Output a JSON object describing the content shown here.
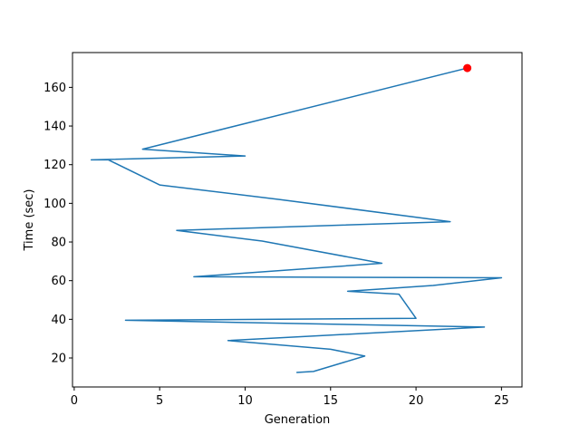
{
  "chart_data": {
    "type": "line",
    "title": "",
    "xlabel": "Generation",
    "ylabel": "Time (sec)",
    "xlim": [
      -0.1,
      26.2
    ],
    "ylim": [
      5,
      178
    ],
    "xticks": [
      0,
      5,
      10,
      15,
      20,
      25
    ],
    "yticks": [
      20,
      40,
      60,
      80,
      100,
      120,
      140,
      160
    ],
    "grid": false,
    "series": [
      {
        "color": "#1f77b4",
        "points": [
          {
            "x": 13,
            "y": 12.5
          },
          {
            "x": 14,
            "y": 13
          },
          {
            "x": 17,
            "y": 21
          },
          {
            "x": 15,
            "y": 24.5
          },
          {
            "x": 9,
            "y": 29
          },
          {
            "x": 24,
            "y": 36
          },
          {
            "x": 3,
            "y": 39.5
          },
          {
            "x": 20,
            "y": 40.5
          },
          {
            "x": 19,
            "y": 53
          },
          {
            "x": 16,
            "y": 54.5
          },
          {
            "x": 21,
            "y": 57.5
          },
          {
            "x": 25,
            "y": 61.5
          },
          {
            "x": 7,
            "y": 62
          },
          {
            "x": 18,
            "y": 69
          },
          {
            "x": 11,
            "y": 80.5
          },
          {
            "x": 6,
            "y": 86
          },
          {
            "x": 22,
            "y": 90.5
          },
          {
            "x": 12,
            "y": 102
          },
          {
            "x": 5,
            "y": 109.5
          },
          {
            "x": 2,
            "y": 122.5
          },
          {
            "x": 1,
            "y": 122.5
          },
          {
            "x": 10,
            "y": 124.5
          },
          {
            "x": 4,
            "y": 128
          },
          {
            "x": 23,
            "y": 170
          }
        ]
      }
    ],
    "highlight_point": {
      "x": 23,
      "y": 170,
      "color": "#ff0000"
    }
  }
}
